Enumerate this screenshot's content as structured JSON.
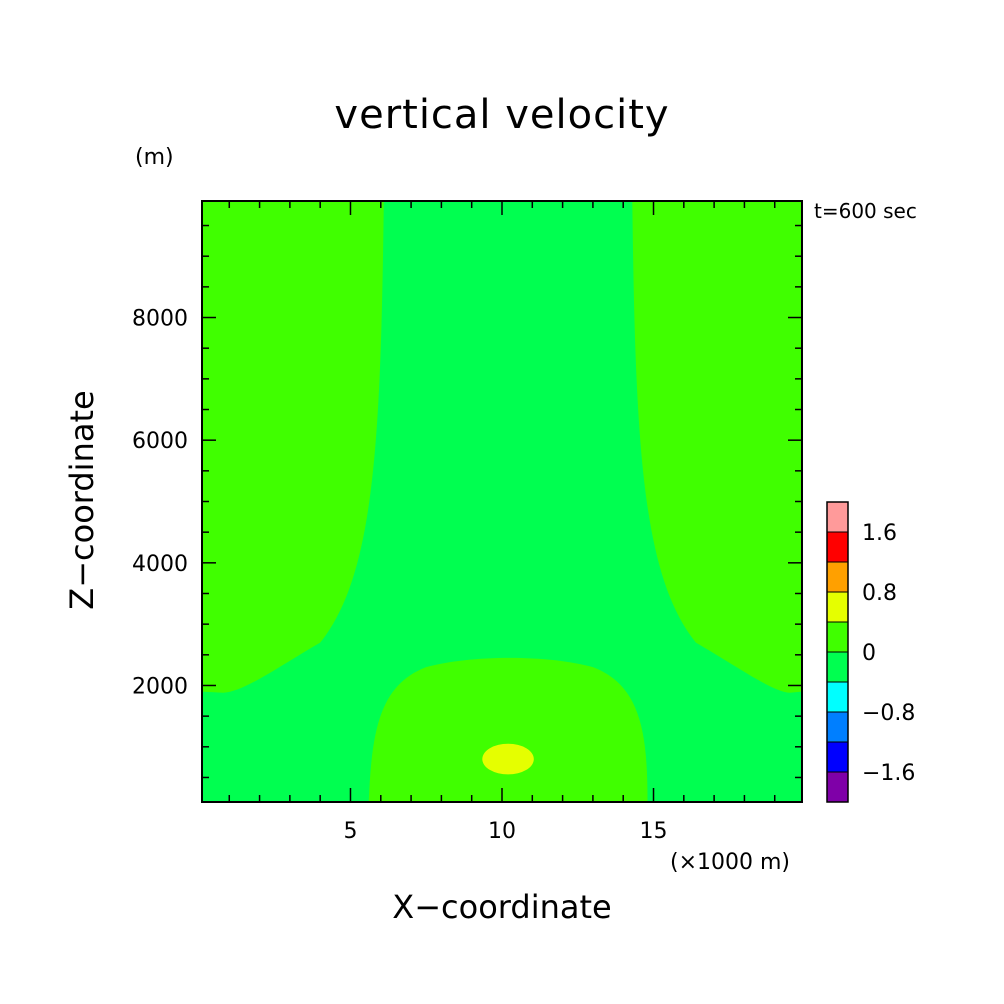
{
  "chart_data": {
    "type": "heatmap",
    "title": "vertical velocity",
    "xlabel": "X−coordinate",
    "ylabel": "Z−coordinate",
    "x_unit_label": "(×1000 m)",
    "y_unit_label": "(m)",
    "time_label": "t=600 sec",
    "xlim": [
      0.1,
      19.9
    ],
    "ylim": [
      100,
      9900
    ],
    "x_ticks": [
      5,
      10,
      15
    ],
    "y_ticks": [
      2000,
      4000,
      6000,
      8000
    ],
    "x_minor_step": 1,
    "y_minor_step": 500,
    "colorbar": {
      "tick_labels": [
        "1.6",
        "0.8",
        "0",
        "−0.8",
        "−1.6"
      ],
      "levels": [
        -2.0,
        -1.6,
        -1.2,
        -0.8,
        -0.4,
        0,
        0.4,
        0.8,
        1.2,
        1.6,
        2.0
      ],
      "colors": [
        "#7f00a8",
        "#0000ff",
        "#007fff",
        "#00ffff",
        "#00ff50",
        "#40ff00",
        "#e5ff00",
        "#ffa000",
        "#ff0000",
        "#ff9a9a"
      ]
    },
    "regions": [
      {
        "band": "0 to 0.4",
        "color": "#40ff00",
        "area": "left and right flanks above about 1900 m"
      },
      {
        "band": "-0.4 to 0",
        "color": "#00ff50",
        "area": "central column widening downward, and bottom corners"
      },
      {
        "band": "0 to 0.4",
        "color": "#40ff00",
        "area": "lower central dome up to about 2500 m"
      },
      {
        "band": "0.4 to 0.8",
        "color": "#e5ff00",
        "area": "small core near x=10, z=800 m"
      }
    ]
  }
}
